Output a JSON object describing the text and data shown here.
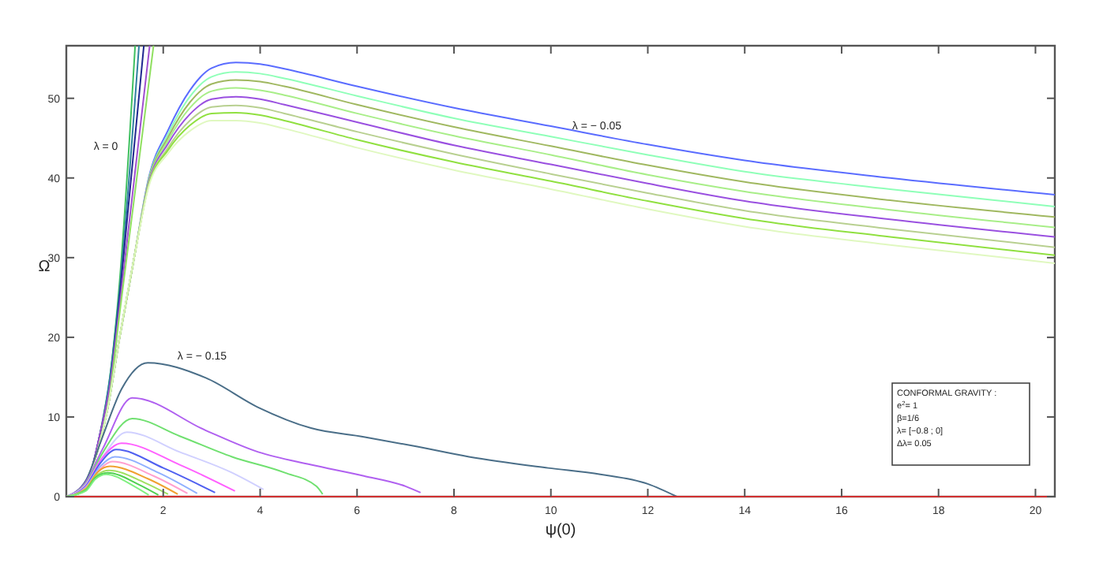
{
  "chart_data": {
    "type": "line",
    "xlabel": "ψ(0)",
    "ylabel": "Ω",
    "xlim": [
      0,
      20.4
    ],
    "ylim": [
      0,
      56.6
    ],
    "xticks": [
      2,
      4,
      6,
      8,
      10,
      12,
      14,
      16,
      18,
      20
    ],
    "yticks": [
      0,
      10,
      20,
      30,
      40,
      50
    ],
    "grid": false,
    "line_style": "solid",
    "series": [
      {
        "color": "#40c060",
        "x": [
          0,
          0.3,
          0.5,
          0.7,
          0.9,
          1.1,
          1.42
        ],
        "values": [
          0,
          0.5,
          3,
          8,
          15,
          27,
          56.6
        ]
      },
      {
        "color": "#3080a0",
        "x": [
          0,
          0.3,
          0.5,
          0.7,
          0.9,
          1.1,
          1.5
        ],
        "values": [
          0,
          0.5,
          3,
          8,
          15,
          26,
          56.6
        ]
      },
      {
        "color": "#202890",
        "x": [
          0,
          0.3,
          0.5,
          0.7,
          0.9,
          1.1,
          1.6
        ],
        "values": [
          0,
          0.5,
          3,
          8,
          14,
          25,
          56.6
        ]
      },
      {
        "color": "#a050d0",
        "x": [
          0,
          0.3,
          0.5,
          0.7,
          0.9,
          1.1,
          1.72
        ],
        "values": [
          0,
          0.5,
          3,
          8,
          14,
          24,
          56.6
        ]
      },
      {
        "color": "#90e060",
        "x": [
          0,
          0.3,
          0.5,
          0.7,
          0.9,
          1.1,
          1.8
        ],
        "values": [
          0,
          0.5,
          3,
          7,
          13,
          23,
          56.6
        ]
      },
      {
        "color": "#5a6cff",
        "x": [
          0,
          0.3,
          0.5,
          0.7,
          0.85,
          1.1,
          1.4,
          1.7,
          2.1,
          2.55,
          3,
          3.5,
          4,
          4.5,
          6,
          8,
          10,
          12,
          14,
          17,
          20.4
        ],
        "values": [
          0,
          0.5,
          3,
          7,
          11,
          20,
          30,
          40,
          46,
          51,
          53.8,
          54.5,
          54.3,
          53.7,
          51.5,
          48.8,
          46.5,
          44.2,
          42.2,
          40,
          37.9
        ]
      },
      {
        "color": "#8fffb8",
        "x": [
          0,
          0.3,
          0.5,
          0.7,
          0.85,
          1.1,
          1.4,
          1.7,
          2.1,
          2.55,
          3,
          3.5,
          4,
          4.5,
          6,
          8,
          10,
          12,
          14,
          17,
          20.4
        ],
        "values": [
          0,
          0.5,
          3,
          7,
          11,
          20,
          30,
          39.8,
          45.5,
          50.2,
          52.7,
          53.3,
          53.1,
          52.5,
          50.3,
          47.5,
          45.2,
          42.9,
          40.8,
          38.6,
          36.4
        ]
      },
      {
        "color": "#a0b860",
        "x": [
          0,
          0.3,
          0.5,
          0.7,
          0.85,
          1.1,
          1.4,
          1.7,
          2.1,
          2.55,
          3,
          3.5,
          4,
          4.5,
          6,
          8,
          10,
          12,
          14,
          17,
          20.4
        ],
        "values": [
          0,
          0.5,
          3,
          7,
          11,
          20,
          30,
          39.7,
          45.1,
          49.5,
          51.8,
          52.3,
          52.1,
          51.5,
          49.2,
          46.4,
          44.0,
          41.6,
          39.5,
          37.2,
          35.1
        ]
      },
      {
        "color": "#a8ee88",
        "x": [
          0,
          0.3,
          0.5,
          0.7,
          0.85,
          1.1,
          1.4,
          1.7,
          2.1,
          2.55,
          3,
          3.5,
          4,
          4.5,
          6,
          8,
          10,
          12,
          14,
          17,
          20.4
        ],
        "values": [
          0,
          0.5,
          3,
          7,
          11,
          20,
          30,
          39.5,
          44.7,
          48.8,
          50.9,
          51.3,
          51.0,
          50.4,
          48.1,
          45.3,
          42.9,
          40.4,
          38.3,
          36.0,
          33.8
        ]
      },
      {
        "color": "#9a50e0",
        "x": [
          0,
          0.3,
          0.5,
          0.7,
          0.85,
          1.1,
          1.4,
          1.7,
          2.1,
          2.55,
          3,
          3.5,
          4,
          4.5,
          6,
          8,
          10,
          12,
          14,
          17,
          20.4
        ],
        "values": [
          0,
          0.5,
          3,
          7,
          11,
          20,
          30,
          39.4,
          44.3,
          48.0,
          49.9,
          50.2,
          49.9,
          49.2,
          47.0,
          44.1,
          41.7,
          39.3,
          37.1,
          34.8,
          32.6
        ]
      },
      {
        "color": "#b8d090",
        "x": [
          0,
          0.3,
          0.5,
          0.7,
          0.85,
          1.1,
          1.4,
          1.7,
          2.1,
          2.55,
          3,
          3.5,
          4,
          4.5,
          6,
          8,
          10,
          12,
          14,
          17,
          20.4
        ],
        "values": [
          0,
          0.5,
          3,
          7,
          11,
          20,
          30,
          39.2,
          43.8,
          47.2,
          48.9,
          49.1,
          48.8,
          48.1,
          45.8,
          43.0,
          40.5,
          38.1,
          35.9,
          33.6,
          31.3
        ]
      },
      {
        "color": "#90e040",
        "x": [
          0,
          0.3,
          0.5,
          0.7,
          0.85,
          1.1,
          1.4,
          1.7,
          2.1,
          2.55,
          3,
          3.5,
          4,
          4.5,
          6,
          8,
          10,
          12,
          14,
          17,
          20.4
        ],
        "values": [
          0,
          0.5,
          3,
          7,
          11,
          20,
          30,
          39.1,
          43.5,
          46.6,
          48.1,
          48.2,
          47.9,
          47.2,
          44.8,
          42.0,
          39.6,
          37.1,
          34.9,
          32.6,
          30.3
        ]
      },
      {
        "color": "#e0f8c0",
        "x": [
          0,
          0.3,
          0.5,
          0.7,
          0.85,
          1.1,
          1.4,
          1.7,
          2.1,
          2.55,
          3,
          3.5,
          4,
          4.5,
          6,
          8,
          10,
          12,
          14,
          17,
          20.4
        ],
        "values": [
          0,
          0.5,
          3,
          7,
          11,
          20,
          30,
          38.9,
          43.1,
          45.9,
          47.2,
          47.2,
          46.9,
          46.2,
          43.8,
          41.0,
          38.6,
          36.1,
          33.9,
          31.6,
          29.3
        ]
      },
      {
        "color": "#4a6e88",
        "x": [
          0,
          0.4,
          0.71,
          1.14,
          1.68,
          2.88,
          3.96,
          5.05,
          6.14,
          7.22,
          8.31,
          9.94,
          11.02,
          12.0,
          12.6
        ],
        "values": [
          0,
          2,
          6.9,
          13.5,
          16.8,
          14.9,
          11.2,
          8.6,
          7.5,
          6.3,
          5.0,
          3.6,
          2.8,
          1.6,
          0
        ]
      },
      {
        "color": "#b060f0",
        "x": [
          0,
          0.4,
          0.75,
          1.36,
          2.88,
          3.96,
          5.05,
          6.14,
          7.0,
          7.31
        ],
        "values": [
          0,
          1.8,
          6,
          12.4,
          8.3,
          5.6,
          4.0,
          2.6,
          1.3,
          0.5
        ]
      },
      {
        "color": "#70e070",
        "x": [
          0,
          0.4,
          0.75,
          1.36,
          2.34,
          3.42,
          4.51,
          5.16,
          5.29
        ],
        "values": [
          0,
          1.6,
          5.5,
          9.8,
          7.6,
          5.0,
          3.0,
          1.3,
          0.3
        ]
      },
      {
        "color": "#d0d0ff",
        "x": [
          0,
          0.4,
          0.75,
          1.25,
          2.34,
          3.42,
          4.07
        ],
        "values": [
          0,
          1.5,
          5,
          8.1,
          5.6,
          3.0,
          0.9
        ]
      },
      {
        "color": "#ff60ff",
        "x": [
          0,
          0.4,
          0.7,
          1.14,
          2.34,
          3.48
        ],
        "values": [
          0,
          1.4,
          4.5,
          6.7,
          4.0,
          0.7
        ]
      },
      {
        "color": "#5060f0",
        "x": [
          0,
          0.4,
          0.7,
          1.03,
          2.0,
          3.07
        ],
        "values": [
          0,
          1.3,
          4.2,
          5.9,
          3.6,
          0.5
        ]
      },
      {
        "color": "#90b0ff",
        "x": [
          0,
          0.4,
          0.7,
          1.0,
          1.9,
          2.7
        ],
        "values": [
          0,
          1.2,
          3.8,
          5.0,
          3.0,
          0.4
        ]
      },
      {
        "color": "#ffa0d0",
        "x": [
          0,
          0.4,
          0.7,
          0.95,
          1.8,
          2.5
        ],
        "values": [
          0,
          1.1,
          3.5,
          4.4,
          2.6,
          0.4
        ]
      },
      {
        "color": "#f0a030",
        "x": [
          0,
          0.4,
          0.65,
          0.9,
          1.7,
          2.3
        ],
        "values": [
          0,
          1.0,
          3.1,
          3.8,
          2.2,
          0.3
        ]
      },
      {
        "color": "#a0e060",
        "x": [
          0,
          0.4,
          0.65,
          0.88,
          1.6,
          2.1
        ],
        "values": [
          0,
          0.9,
          2.8,
          3.3,
          1.8,
          0.3
        ]
      },
      {
        "color": "#50d050",
        "x": [
          0,
          0.4,
          0.6,
          0.85,
          1.5,
          1.9
        ],
        "values": [
          0,
          0.8,
          2.4,
          3.0,
          1.5,
          0.2
        ]
      },
      {
        "color": "#80f080",
        "x": [
          0,
          0.4,
          0.6,
          0.82,
          1.4,
          1.7
        ],
        "values": [
          0,
          0.7,
          2.2,
          2.8,
          1.3,
          0.2
        ]
      },
      {
        "color": "#d03030",
        "x": [
          0,
          20.4
        ],
        "values": [
          0,
          0
        ]
      }
    ],
    "annotations": [
      "λ = 0",
      "λ = − 0.05",
      "λ = − 0.15",
      "CONFORMAL GRAVITY :",
      "e$^{2}$= 1",
      "β=1/6",
      "λ= [−0.8 ; 0]",
      "Δλ= 0.05"
    ]
  }
}
